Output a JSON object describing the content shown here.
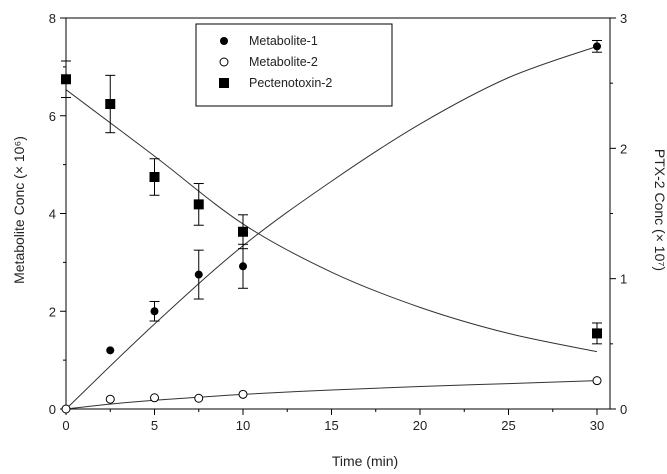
{
  "chart_data": {
    "type": "scatter",
    "title": "",
    "xlabel": "Time (min)",
    "ylabel_left": "Metabolite Conc (× 10⁶)",
    "ylabel_right": "PTX-2 Conc (× 10⁷)",
    "xlim": [
      0,
      31
    ],
    "ylim_left": [
      0,
      8
    ],
    "ylim_right": [
      0,
      3
    ],
    "xticks": [
      "0",
      "5",
      "10",
      "15",
      "20",
      "25",
      "30"
    ],
    "yticks_left": [
      "0",
      "2",
      "4",
      "6",
      "8"
    ],
    "yticks_right": [
      "0",
      "1",
      "2",
      "3"
    ],
    "grid": false,
    "legend_position": "top-center",
    "series": [
      {
        "name": "Metabolite-1",
        "axis": "left",
        "marker": "filled-circle",
        "x": [
          2.5,
          5,
          7.5,
          10,
          30
        ],
        "y": [
          1.2,
          2.0,
          2.75,
          2.92,
          7.42
        ],
        "err": [
          0,
          0.2,
          0.5,
          0.45,
          0.12
        ],
        "fit": [
          [
            0,
            0
          ],
          [
            5,
            1.74
          ],
          [
            10,
            3.34
          ],
          [
            15,
            4.66
          ],
          [
            20,
            5.83
          ],
          [
            25,
            6.78
          ],
          [
            30,
            7.42
          ]
        ]
      },
      {
        "name": "Metabolite-2",
        "axis": "left",
        "marker": "open-circle",
        "x": [
          2.5,
          5,
          7.5,
          10,
          30
        ],
        "y": [
          0.2,
          0.23,
          0.22,
          0.3,
          0.58
        ],
        "err": [
          0,
          0,
          0,
          0,
          0
        ],
        "fit": [
          [
            0,
            0
          ],
          [
            2.5,
            0.1
          ],
          [
            5,
            0.18
          ],
          [
            7.5,
            0.24
          ],
          [
            10,
            0.3
          ],
          [
            15,
            0.39
          ],
          [
            20,
            0.46
          ],
          [
            25,
            0.52
          ],
          [
            30,
            0.58
          ]
        ]
      },
      {
        "name": "Pectenotoxin-2",
        "axis": "right",
        "marker": "filled-square",
        "x": [
          0,
          2.5,
          5,
          7.5,
          10,
          30
        ],
        "y": [
          2.53,
          2.34,
          1.78,
          1.57,
          1.36,
          0.58
        ],
        "err": [
          0.14,
          0.22,
          0.14,
          0.16,
          0.13,
          0.08
        ],
        "fit": [
          [
            0,
            2.45
          ],
          [
            5,
            1.94
          ],
          [
            10,
            1.42
          ],
          [
            15,
            1.05
          ],
          [
            20,
            0.78
          ],
          [
            25,
            0.58
          ],
          [
            30,
            0.44
          ]
        ]
      }
    ]
  }
}
